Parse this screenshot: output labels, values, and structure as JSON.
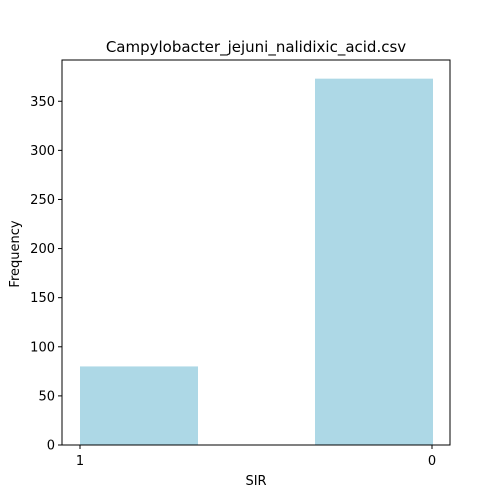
{
  "chart_data": {
    "type": "bar",
    "title": "Campylobacter_jejuni_nalidixic_acid.csv",
    "xlabel": "SIR",
    "ylabel": "Frequency",
    "categories": [
      "1",
      "0"
    ],
    "values": [
      80,
      373
    ],
    "ylim": [
      0,
      392
    ],
    "yticks": [
      0,
      50,
      100,
      150,
      200,
      250,
      300,
      350
    ],
    "bar_color": "#add8e6",
    "grid": false,
    "legend": "none"
  }
}
